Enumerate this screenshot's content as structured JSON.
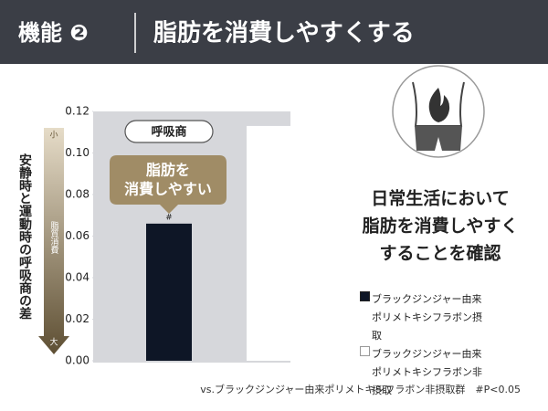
{
  "header": {
    "label": "機能 ❷",
    "title": "脂肪を消費しやすくする"
  },
  "chart_data": {
    "type": "bar",
    "y_label": "安静時と運動時の呼吸商の差",
    "arrow_top": "小",
    "arrow_bottom": "大",
    "arrow_label": "脂質消費",
    "box_label": "呼吸商",
    "callout": [
      "脂肪を",
      "消費しやすい"
    ],
    "significance": "#",
    "series": [
      {
        "name": "ブラックジンジャー由来ポリメトキシフラボン摂取",
        "color": "#0e1626",
        "values": [
          0.066
        ]
      },
      {
        "name": "ブラックジンジャー由来ポリメトキシフラボン非摂取",
        "color": "#ffffff",
        "values": [
          0.113
        ]
      }
    ],
    "ylim": [
      0,
      0.12
    ],
    "yticks": [
      {
        "value": 0,
        "label": "0.00"
      },
      {
        "value": 0.02,
        "label": "0.02"
      },
      {
        "value": 0.04,
        "label": "0.04"
      },
      {
        "value": 0.06,
        "label": "0.06"
      },
      {
        "value": 0.08,
        "label": "0.08"
      },
      {
        "value": 0.1,
        "label": "0.10"
      },
      {
        "value": 0.12,
        "label": "0.12"
      }
    ],
    "conclusion": [
      "日常生活において",
      "脂肪を消費しやすく",
      "することを確認"
    ],
    "footnote": "vs.ブラックジンジャー由来ポリメトキシフラボン非摂取群　#P<0.05"
  }
}
